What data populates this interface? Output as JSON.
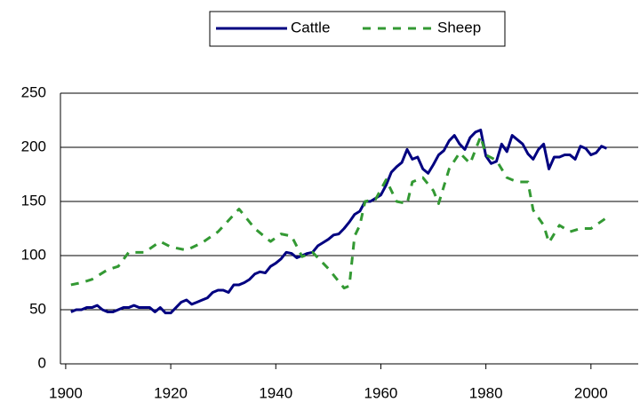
{
  "chart_data": {
    "type": "line",
    "legend": "top",
    "grid": true,
    "xlim": [
      1899,
      2009
    ],
    "xticks": [
      1900,
      1920,
      1940,
      1960,
      1980,
      2000
    ],
    "ylim": [
      0,
      250
    ],
    "yticks": [
      0,
      50,
      100,
      150,
      200,
      250
    ],
    "series": [
      {
        "name": "Cattle",
        "color": "#000080",
        "line_style": "solid",
        "x": [
          1901,
          1902,
          1903,
          1904,
          1905,
          1906,
          1907,
          1908,
          1909,
          1910,
          1911,
          1912,
          1913,
          1914,
          1915,
          1916,
          1917,
          1918,
          1919,
          1920,
          1921,
          1922,
          1923,
          1924,
          1925,
          1926,
          1927,
          1928,
          1929,
          1930,
          1931,
          1932,
          1933,
          1934,
          1935,
          1936,
          1937,
          1938,
          1939,
          1940,
          1941,
          1942,
          1943,
          1944,
          1945,
          1946,
          1947,
          1948,
          1949,
          1950,
          1951,
          1952,
          1953,
          1954,
          1955,
          1956,
          1957,
          1958,
          1959,
          1960,
          1961,
          1962,
          1963,
          1964,
          1965,
          1966,
          1967,
          1968,
          1969,
          1970,
          1971,
          1972,
          1973,
          1974,
          1975,
          1976,
          1977,
          1978,
          1979,
          1980,
          1981,
          1982,
          1983,
          1984,
          1985,
          1986,
          1987,
          1988,
          1989,
          1990,
          1991,
          1992,
          1993,
          1994,
          1995,
          1996,
          1997,
          1998,
          1999,
          2000,
          2001,
          2002,
          2003
        ],
        "values": [
          48,
          50,
          50,
          52,
          52,
          54,
          50,
          48,
          48,
          50,
          52,
          52,
          54,
          52,
          52,
          52,
          48,
          52,
          47,
          47,
          52,
          57,
          59,
          55,
          57,
          59,
          61,
          66,
          68,
          68,
          66,
          73,
          73,
          75,
          78,
          83,
          85,
          84,
          90,
          93,
          97,
          103,
          102,
          98,
          100,
          102,
          103,
          109,
          112,
          115,
          119,
          120,
          125,
          131,
          138,
          141,
          150,
          150,
          153,
          156,
          165,
          177,
          182,
          186,
          198,
          189,
          191,
          180,
          176,
          184,
          193,
          197,
          206,
          211,
          203,
          198,
          209,
          214,
          216,
          192,
          185,
          187,
          203,
          196,
          211,
          207,
          203,
          194,
          189,
          198,
          203,
          180,
          191,
          191,
          193,
          193,
          189,
          201,
          199,
          193,
          195,
          201,
          199
        ]
      },
      {
        "name": "Sheep",
        "color": "#339933",
        "line_style": "dashed",
        "x": [
          1901,
          1903,
          1905,
          1908,
          1910,
          1912,
          1915,
          1918,
          1920,
          1923,
          1926,
          1929,
          1933,
          1936,
          1939,
          1941,
          1943,
          1945,
          1947,
          1950,
          1953,
          1954,
          1955,
          1956,
          1957,
          1959,
          1961,
          1963,
          1965,
          1966,
          1968,
          1970,
          1971,
          1973,
          1975,
          1977,
          1979,
          1980,
          1982,
          1984,
          1986,
          1988,
          1989,
          1991,
          1992,
          1994,
          1996,
          1998,
          2000,
          2003
        ],
        "values": [
          73,
          75,
          78,
          87,
          90,
          103,
          103,
          113,
          108,
          105,
          112,
          122,
          143,
          125,
          113,
          120,
          118,
          99,
          103,
          88,
          70,
          72,
          118,
          128,
          150,
          152,
          170,
          150,
          148,
          168,
          172,
          160,
          148,
          180,
          195,
          185,
          210,
          193,
          188,
          172,
          168,
          168,
          142,
          128,
          112,
          128,
          122,
          125,
          125,
          135
        ]
      }
    ]
  }
}
